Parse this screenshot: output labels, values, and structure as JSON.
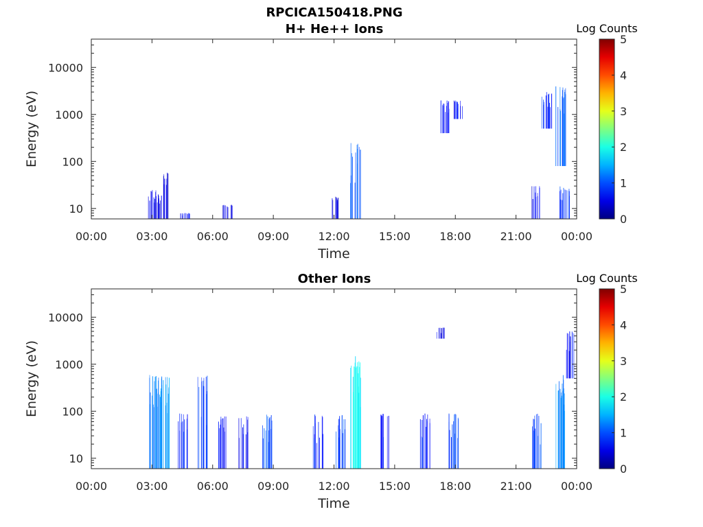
{
  "figure_title": "RPCICA150418.PNG",
  "chart_data": [
    {
      "type": "heatmap",
      "title": "H+ He++ Ions",
      "xlabel": "Time",
      "ylabel": "Energy (eV)",
      "y_scale": "log",
      "xlim_hours": [
        0,
        24
      ],
      "ylim": [
        6,
        40000
      ],
      "x_ticks": [
        "00:00",
        "03:00",
        "06:00",
        "09:00",
        "12:00",
        "15:00",
        "18:00",
        "21:00",
        "00:00"
      ],
      "y_ticks": [
        10,
        100,
        1000,
        10000
      ],
      "y_tick_labels": [
        "10",
        "100",
        "1000",
        "10000"
      ],
      "colorbar": {
        "label": "Log Counts",
        "range": [
          0,
          5
        ],
        "ticks": [
          "0",
          "1",
          "2",
          "3",
          "4",
          "5"
        ]
      },
      "events": [
        {
          "t": 3.0,
          "e_lo": 6,
          "e_hi": 25,
          "level": 0.4
        },
        {
          "t": 3.3,
          "e_lo": 6,
          "e_hi": 20,
          "level": 0.3
        },
        {
          "t": 3.7,
          "e_lo": 6,
          "e_hi": 60,
          "level": 0.3
        },
        {
          "t": 4.6,
          "e_lo": 6,
          "e_hi": 8,
          "level": 0.5
        },
        {
          "t": 6.7,
          "e_lo": 6,
          "e_hi": 12,
          "level": 0.3
        },
        {
          "t": 12.0,
          "e_lo": 6,
          "e_hi": 18,
          "level": 0.3
        },
        {
          "t": 13.05,
          "e_lo": 6,
          "e_hi": 250,
          "level": 0.9
        },
        {
          "t": 17.5,
          "e_lo": 400,
          "e_hi": 2000,
          "level": 0.6
        },
        {
          "t": 18.1,
          "e_lo": 800,
          "e_hi": 2000,
          "level": 0.5
        },
        {
          "t": 22.0,
          "e_lo": 6,
          "e_hi": 30,
          "level": 0.4
        },
        {
          "t": 22.5,
          "e_lo": 500,
          "e_hi": 3000,
          "level": 0.7
        },
        {
          "t": 23.2,
          "e_lo": 80,
          "e_hi": 4000,
          "level": 1.0
        },
        {
          "t": 23.4,
          "e_lo": 6,
          "e_hi": 30,
          "level": 0.8
        }
      ]
    },
    {
      "type": "heatmap",
      "title": "Other Ions",
      "xlabel": "Time",
      "ylabel": "Energy (eV)",
      "y_scale": "log",
      "xlim_hours": [
        0,
        24
      ],
      "ylim": [
        6,
        40000
      ],
      "x_ticks": [
        "00:00",
        "03:00",
        "06:00",
        "09:00",
        "12:00",
        "15:00",
        "18:00",
        "21:00",
        "00:00"
      ],
      "y_ticks": [
        10,
        100,
        1000,
        10000
      ],
      "y_tick_labels": [
        "10",
        "100",
        "1000",
        "10000"
      ],
      "colorbar": {
        "label": "Log Counts",
        "range": [
          0,
          5
        ],
        "ticks": [
          "0",
          "1",
          "2",
          "3",
          "4",
          "5"
        ]
      },
      "events": [
        {
          "t": 3.1,
          "e_lo": 6,
          "e_hi": 600,
          "level": 1.2
        },
        {
          "t": 3.6,
          "e_lo": 6,
          "e_hi": 550,
          "level": 1.3
        },
        {
          "t": 4.5,
          "e_lo": 6,
          "e_hi": 90,
          "level": 0.6
        },
        {
          "t": 5.5,
          "e_lo": 6,
          "e_hi": 600,
          "level": 0.8
        },
        {
          "t": 6.5,
          "e_lo": 6,
          "e_hi": 80,
          "level": 0.5
        },
        {
          "t": 7.5,
          "e_lo": 6,
          "e_hi": 80,
          "level": 0.5
        },
        {
          "t": 8.7,
          "e_lo": 6,
          "e_hi": 90,
          "level": 0.9
        },
        {
          "t": 11.2,
          "e_lo": 6,
          "e_hi": 90,
          "level": 0.7
        },
        {
          "t": 12.3,
          "e_lo": 6,
          "e_hi": 90,
          "level": 0.9
        },
        {
          "t": 13.05,
          "e_lo": 6,
          "e_hi": 1500,
          "level": 1.8
        },
        {
          "t": 14.5,
          "e_lo": 6,
          "e_hi": 90,
          "level": 0.6
        },
        {
          "t": 16.5,
          "e_lo": 6,
          "e_hi": 90,
          "level": 0.6
        },
        {
          "t": 17.2,
          "e_lo": 3500,
          "e_hi": 6000,
          "level": 0.4
        },
        {
          "t": 17.9,
          "e_lo": 6,
          "e_hi": 90,
          "level": 0.8
        },
        {
          "t": 22.0,
          "e_lo": 6,
          "e_hi": 90,
          "level": 0.8
        },
        {
          "t": 23.2,
          "e_lo": 6,
          "e_hi": 600,
          "level": 1.2
        },
        {
          "t": 23.6,
          "e_lo": 500,
          "e_hi": 5000,
          "level": 0.5
        }
      ]
    }
  ]
}
